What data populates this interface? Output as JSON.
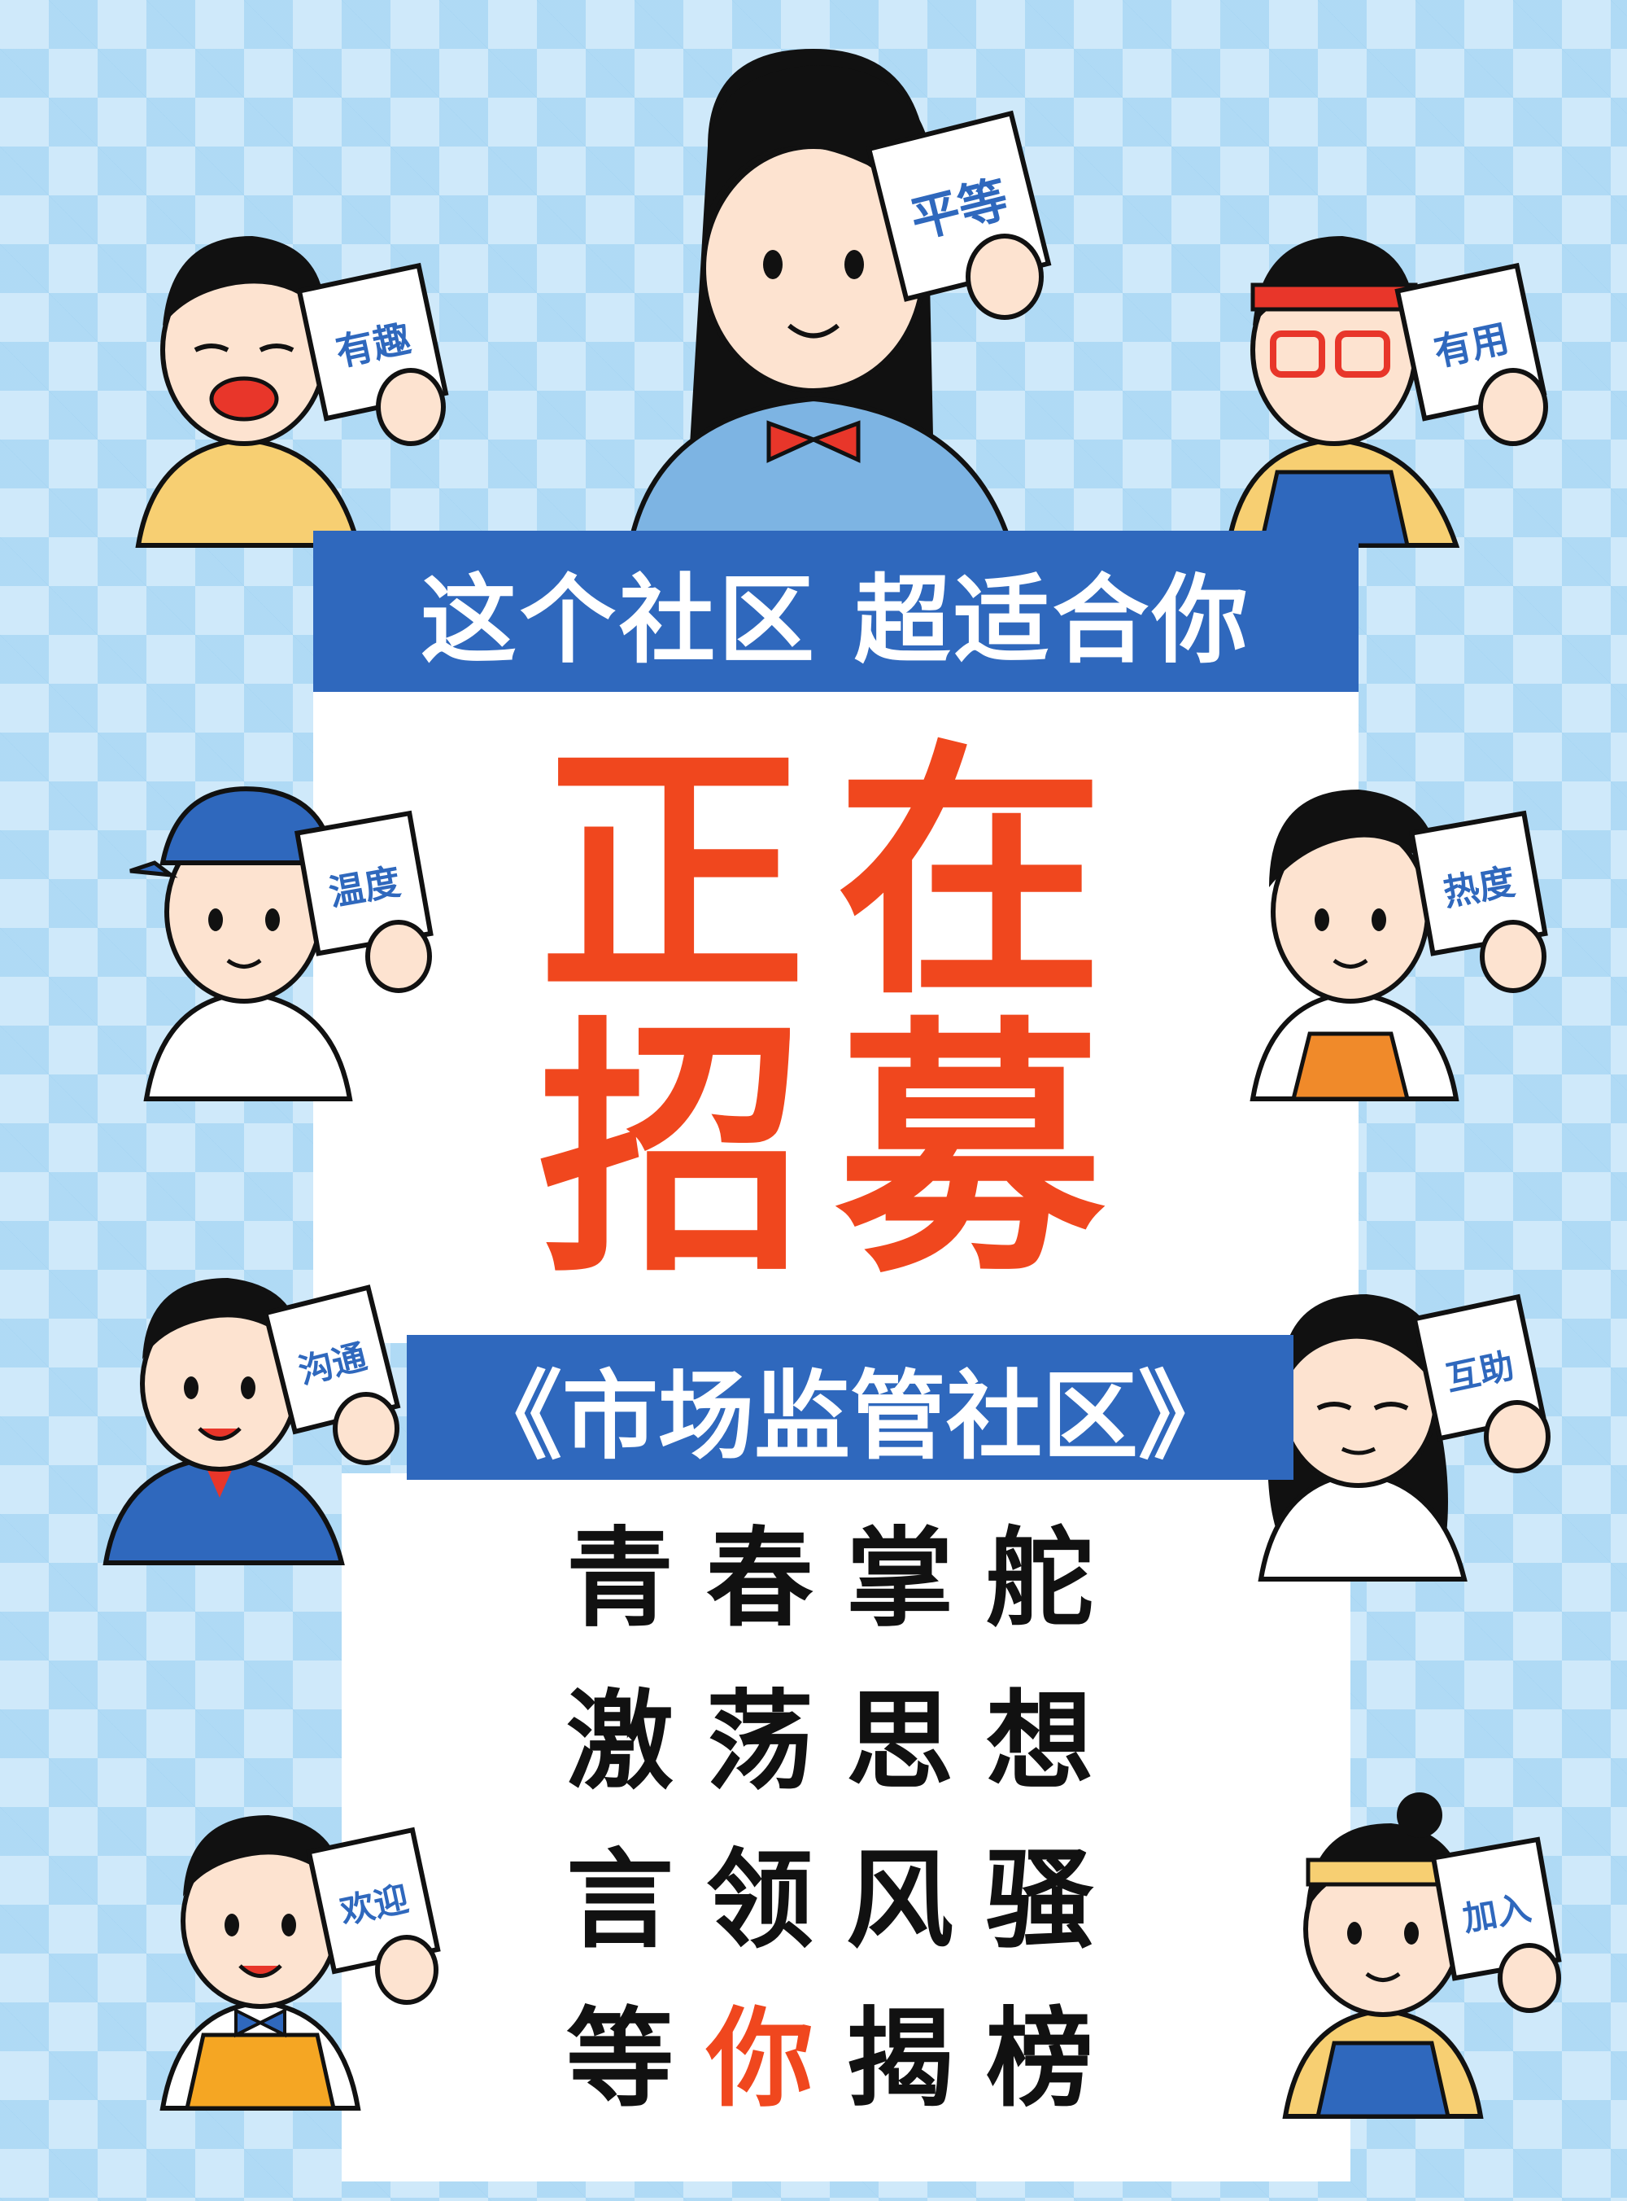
{
  "banner_top": "这个社区  超适合你",
  "headline": [
    "正在",
    "招募"
  ],
  "banner_mid": "《市场监管社区》",
  "slogans": [
    {
      "text": "青春掌舵"
    },
    {
      "text": "激荡思想"
    },
    {
      "text": "言领风骚"
    },
    {
      "pre": "等",
      "highlight": "你",
      "post": "揭榜"
    }
  ],
  "cards": {
    "center_top": "平等",
    "left_1": "有趣",
    "right_1": "有用",
    "left_2": "温度",
    "right_2": "热度",
    "left_3": "沟通",
    "right_3": "互助",
    "left_4": "欢迎",
    "right_4": "加入"
  },
  "colors": {
    "background": "#cfe9fa",
    "banner_blue": "#2f68bd",
    "headline_orange": "#f0471e"
  }
}
